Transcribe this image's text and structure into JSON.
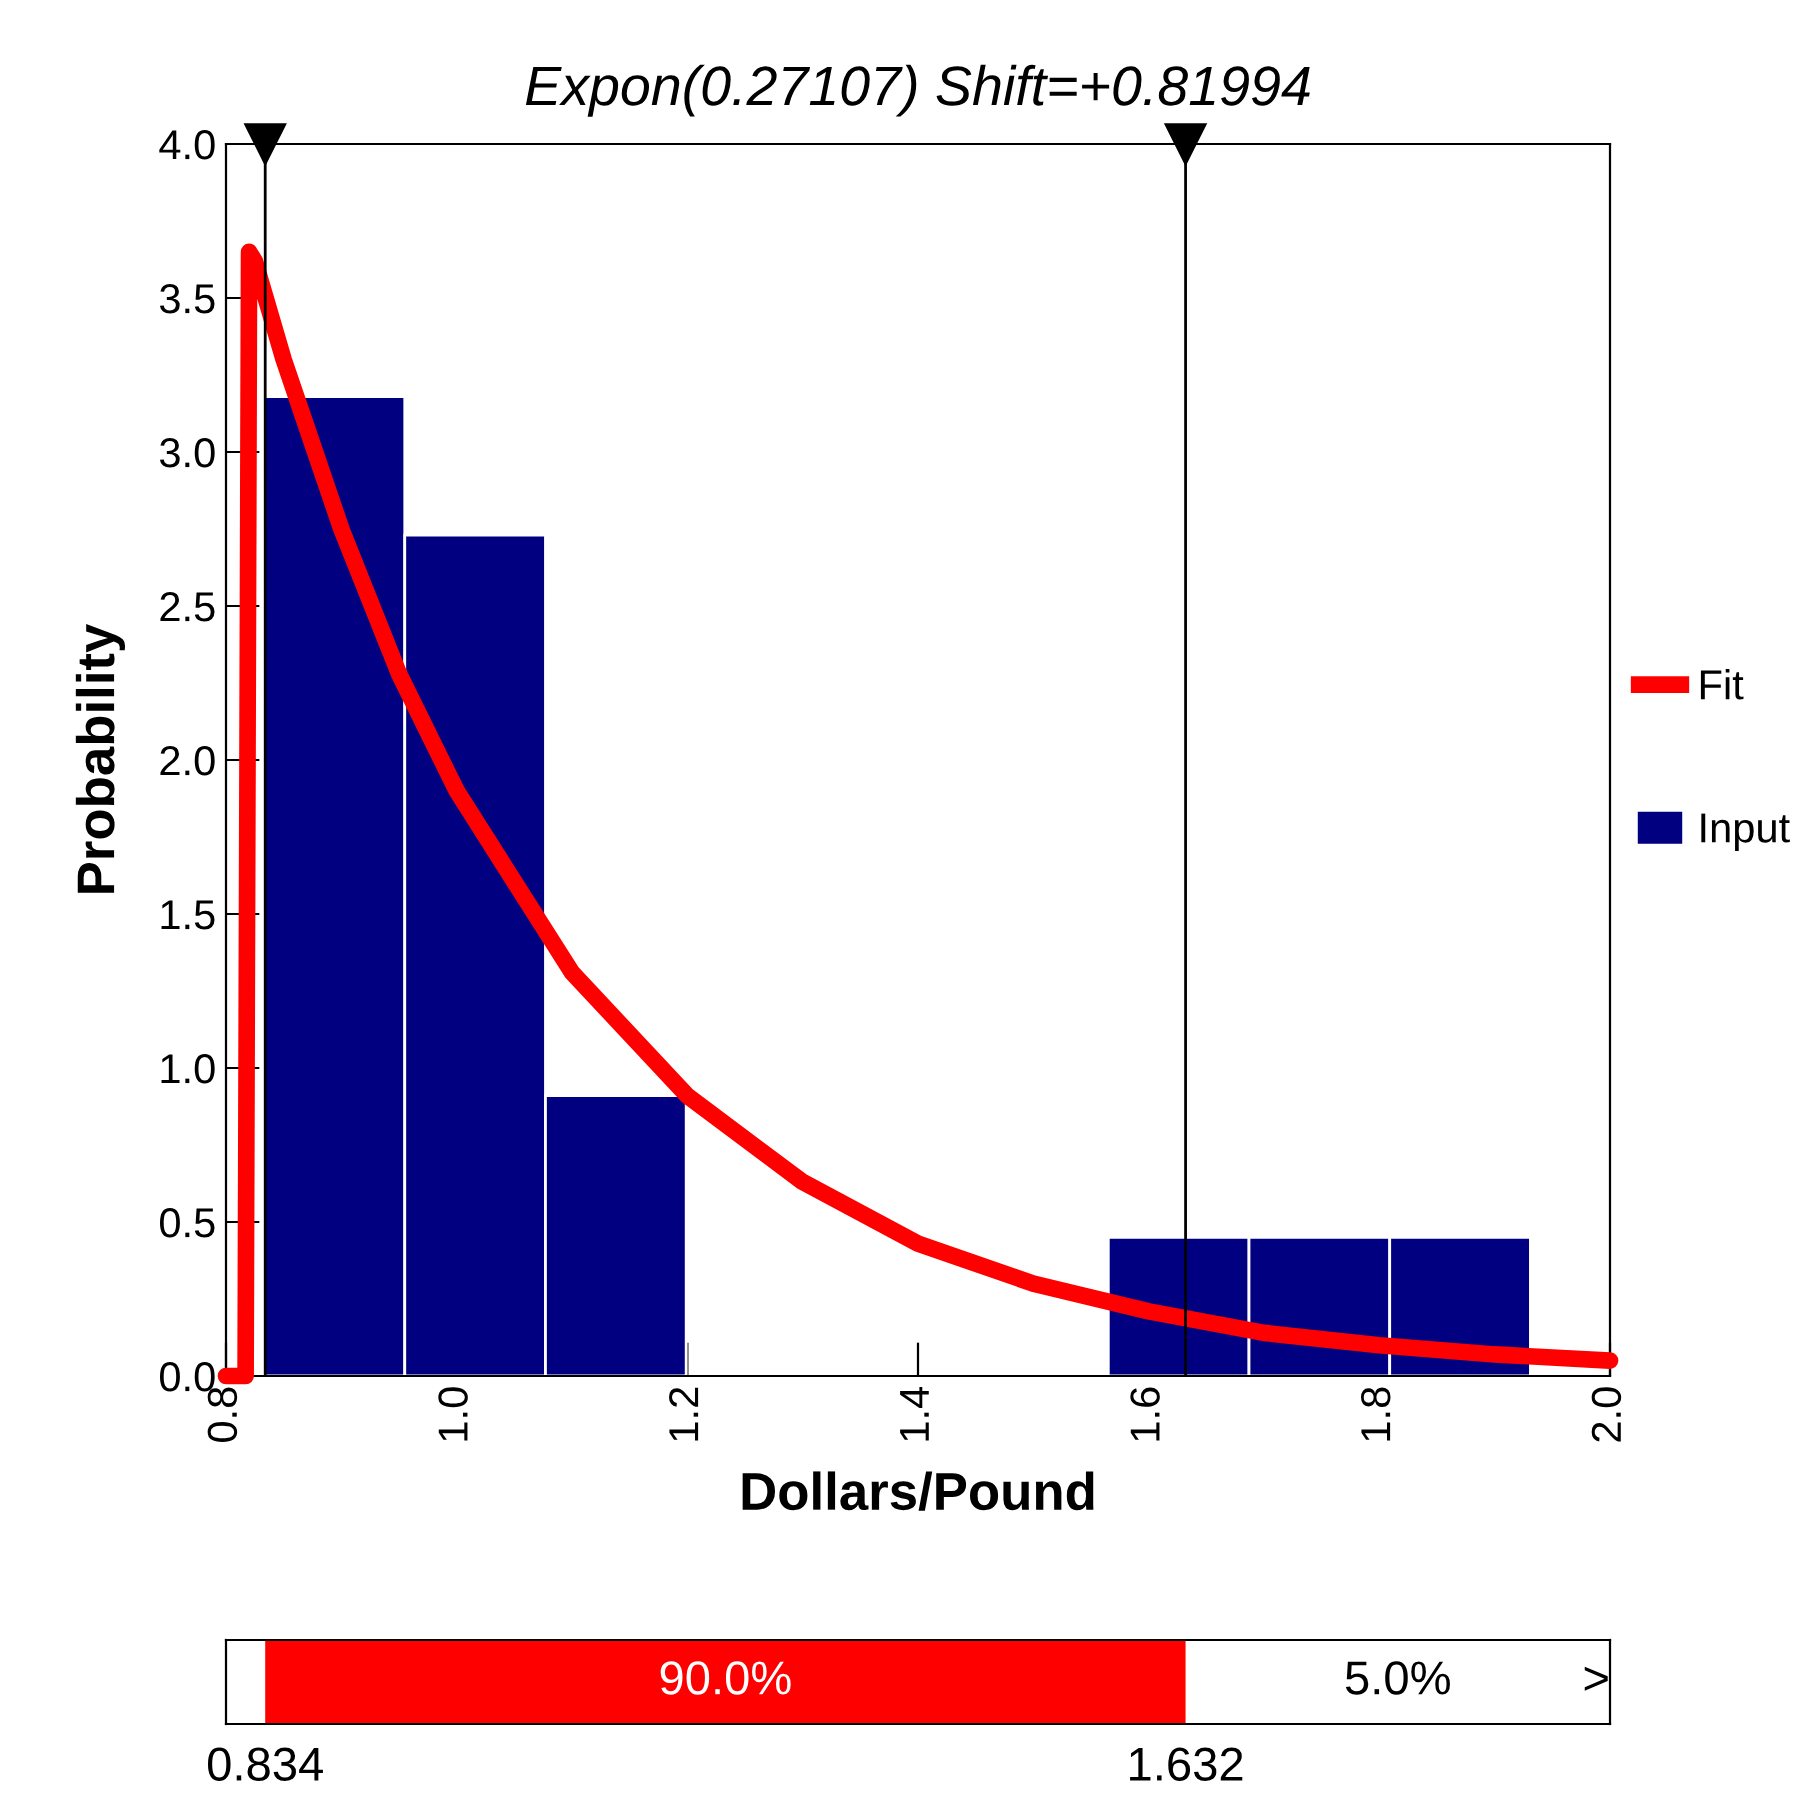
{
  "chart_data": [
    {
      "type": "histogram",
      "title": "Expon(0.27107) Shift=+0.81994",
      "xlabel": "Dollars/Pound",
      "ylabel": "Probability",
      "bins": [
        0.833,
        0.955,
        1.077,
        1.199,
        1.321,
        1.443,
        1.565,
        1.687,
        1.809,
        1.931
      ],
      "series": [
        {
          "name": "Input",
          "type": "histogram",
          "color": "#000080",
          "values": [
            3.18,
            2.73,
            0.91,
            0,
            0,
            0,
            0.45,
            0.45,
            0.45
          ]
        },
        {
          "name": "Fit",
          "type": "line",
          "color": "#ff0000",
          "x": [
            0.8,
            0.817,
            0.82,
            0.825,
            0.85,
            0.9,
            0.95,
            1.0,
            1.1,
            1.2,
            1.3,
            1.4,
            1.5,
            1.6,
            1.7,
            1.8,
            1.9,
            2.0
          ],
          "values": [
            0,
            0,
            3.65,
            3.62,
            3.3,
            2.75,
            2.28,
            1.9,
            1.31,
            0.91,
            0.63,
            0.43,
            0.3,
            0.21,
            0.14,
            0.1,
            0.07,
            0.05
          ]
        }
      ],
      "xlim": [
        0.8,
        2.0
      ],
      "xticks": [
        {
          "value": 0.8,
          "label": "0.8"
        },
        {
          "value": 1.0,
          "label": "1.0"
        },
        {
          "value": 1.2,
          "label": "1.2"
        },
        {
          "value": 1.4,
          "label": "1.4"
        },
        {
          "value": 1.6,
          "label": "1.6"
        },
        {
          "value": 1.8,
          "label": "1.8"
        },
        {
          "value": 2.0,
          "label": "2.0"
        }
      ],
      "ylim": [
        0,
        4.0
      ],
      "yticks": [
        {
          "value": 0,
          "label": "0.0"
        },
        {
          "value": 0.5,
          "label": "0.5"
        },
        {
          "value": 1.0,
          "label": "1.0"
        },
        {
          "value": 1.5,
          "label": "1.5"
        },
        {
          "value": 2.0,
          "label": "2.0"
        },
        {
          "value": 2.5,
          "label": "2.5"
        },
        {
          "value": 3.0,
          "label": "3.0"
        },
        {
          "value": 3.5,
          "label": "3.5"
        },
        {
          "value": 4.0,
          "label": "4.0"
        }
      ],
      "ref_lines": [
        {
          "axis": "x",
          "value": 0.834,
          "color": "#000000"
        },
        {
          "axis": "x",
          "value": 1.632,
          "color": "#000000"
        }
      ],
      "grid": false,
      "legend": "right"
    },
    {
      "type": "bar",
      "orientation": "horizontal",
      "categories": [
        null
      ],
      "base": [
        0.834
      ],
      "values": [
        0.798
      ],
      "color": "#ff0000",
      "xlim": [
        0.8,
        2.0
      ],
      "xticks": [
        {
          "value": 0.834,
          "label": "0.834"
        },
        {
          "value": 1.632,
          "label": "1.632"
        }
      ],
      "annotations": [
        "90.0%",
        "5.0%",
        ">"
      ],
      "tick_labels": "x"
    }
  ]
}
